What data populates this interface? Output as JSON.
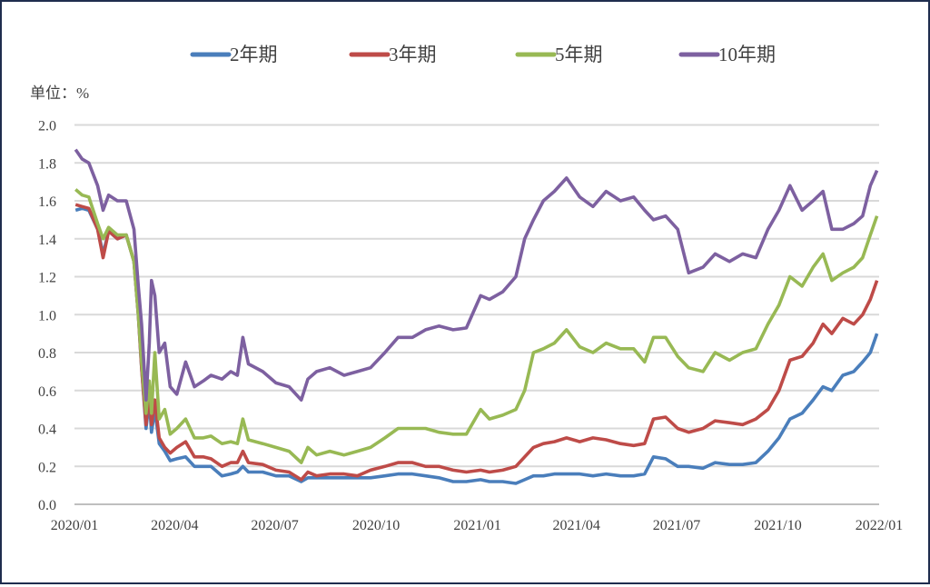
{
  "chart_data": {
    "type": "line",
    "unit_label": "单位：%",
    "ylim": [
      0,
      2.0
    ],
    "yticks": [
      "0.0",
      "0.2",
      "0.4",
      "0.6",
      "0.8",
      "1.0",
      "1.2",
      "1.4",
      "1.6",
      "1.8",
      "2.0"
    ],
    "xlim": [
      "2020-01-01",
      "2022-01-01"
    ],
    "xticks": [
      {
        "date": "2020-01-01",
        "label": "2020/01"
      },
      {
        "date": "2020-04-01",
        "label": "2020/04"
      },
      {
        "date": "2020-07-01",
        "label": "2020/07"
      },
      {
        "date": "2020-10-01",
        "label": "2020/10"
      },
      {
        "date": "2021-01-01",
        "label": "2021/01"
      },
      {
        "date": "2021-04-01",
        "label": "2021/04"
      },
      {
        "date": "2021-07-01",
        "label": "2021/07"
      },
      {
        "date": "2021-10-01",
        "label": "2021/10"
      },
      {
        "date": "2022-01-01",
        "label": "2022/01"
      }
    ],
    "grid": true,
    "legend_position": "top",
    "x": [
      "2020-01-02",
      "2020-01-08",
      "2020-01-14",
      "2020-01-22",
      "2020-01-27",
      "2020-02-01",
      "2020-02-09",
      "2020-02-17",
      "2020-02-24",
      "2020-02-28",
      "2020-03-02",
      "2020-03-06",
      "2020-03-09",
      "2020-03-11",
      "2020-03-14",
      "2020-03-18",
      "2020-03-23",
      "2020-03-28",
      "2020-04-03",
      "2020-04-11",
      "2020-04-19",
      "2020-04-27",
      "2020-05-04",
      "2020-05-14",
      "2020-05-22",
      "2020-05-28",
      "2020-06-02",
      "2020-06-07",
      "2020-06-20",
      "2020-07-02",
      "2020-07-14",
      "2020-07-25",
      "2020-07-31",
      "2020-08-08",
      "2020-08-20",
      "2020-09-02",
      "2020-09-14",
      "2020-09-26",
      "2020-10-09",
      "2020-10-21",
      "2020-11-03",
      "2020-11-15",
      "2020-11-27",
      "2020-12-10",
      "2020-12-22",
      "2021-01-04",
      "2021-01-12",
      "2021-01-24",
      "2021-02-05",
      "2021-02-13",
      "2021-02-21",
      "2021-03-02",
      "2021-03-12",
      "2021-03-23",
      "2021-04-04",
      "2021-04-16",
      "2021-04-28",
      "2021-05-11",
      "2021-05-23",
      "2021-06-02",
      "2021-06-10",
      "2021-06-21",
      "2021-07-02",
      "2021-07-12",
      "2021-07-25",
      "2021-08-05",
      "2021-08-18",
      "2021-08-30",
      "2021-09-11",
      "2021-09-22",
      "2021-10-02",
      "2021-10-12",
      "2021-10-23",
      "2021-11-02",
      "2021-11-11",
      "2021-11-19",
      "2021-11-29",
      "2021-12-09",
      "2021-12-17",
      "2021-12-24",
      "2021-12-30"
    ],
    "series": [
      {
        "name": "2年期",
        "color": "#4a7ebb",
        "values": [
          1.55,
          1.56,
          1.55,
          1.45,
          1.32,
          1.44,
          1.4,
          1.42,
          1.28,
          1.0,
          0.72,
          0.4,
          0.55,
          0.38,
          0.5,
          0.32,
          0.28,
          0.23,
          0.24,
          0.25,
          0.2,
          0.2,
          0.2,
          0.15,
          0.16,
          0.17,
          0.2,
          0.17,
          0.17,
          0.15,
          0.15,
          0.12,
          0.14,
          0.14,
          0.14,
          0.14,
          0.14,
          0.14,
          0.15,
          0.16,
          0.16,
          0.15,
          0.14,
          0.12,
          0.12,
          0.13,
          0.12,
          0.12,
          0.11,
          0.13,
          0.15,
          0.15,
          0.16,
          0.16,
          0.16,
          0.15,
          0.16,
          0.15,
          0.15,
          0.16,
          0.25,
          0.24,
          0.2,
          0.2,
          0.19,
          0.22,
          0.21,
          0.21,
          0.22,
          0.28,
          0.35,
          0.45,
          0.48,
          0.55,
          0.62,
          0.6,
          0.68,
          0.7,
          0.75,
          0.8,
          0.9
        ]
      },
      {
        "name": "3年期",
        "color": "#be4b48",
        "values": [
          1.58,
          1.57,
          1.56,
          1.45,
          1.3,
          1.44,
          1.4,
          1.42,
          1.28,
          1.0,
          0.72,
          0.42,
          0.6,
          0.42,
          0.55,
          0.35,
          0.3,
          0.27,
          0.3,
          0.33,
          0.25,
          0.25,
          0.24,
          0.2,
          0.22,
          0.22,
          0.28,
          0.22,
          0.21,
          0.18,
          0.17,
          0.13,
          0.17,
          0.15,
          0.16,
          0.16,
          0.15,
          0.18,
          0.2,
          0.22,
          0.22,
          0.2,
          0.2,
          0.18,
          0.17,
          0.18,
          0.17,
          0.18,
          0.2,
          0.25,
          0.3,
          0.32,
          0.33,
          0.35,
          0.33,
          0.35,
          0.34,
          0.32,
          0.31,
          0.32,
          0.45,
          0.46,
          0.4,
          0.38,
          0.4,
          0.44,
          0.43,
          0.42,
          0.45,
          0.5,
          0.6,
          0.76,
          0.78,
          0.85,
          0.95,
          0.9,
          0.98,
          0.95,
          1.0,
          1.08,
          1.18
        ]
      },
      {
        "name": "5年期",
        "color": "#98b954",
        "values": [
          1.66,
          1.63,
          1.62,
          1.48,
          1.4,
          1.46,
          1.42,
          1.42,
          1.28,
          1.0,
          0.75,
          0.48,
          0.65,
          0.48,
          0.8,
          0.45,
          0.5,
          0.37,
          0.4,
          0.45,
          0.35,
          0.35,
          0.36,
          0.32,
          0.33,
          0.32,
          0.45,
          0.34,
          0.32,
          0.3,
          0.28,
          0.22,
          0.3,
          0.26,
          0.28,
          0.26,
          0.28,
          0.3,
          0.35,
          0.4,
          0.4,
          0.4,
          0.38,
          0.37,
          0.37,
          0.5,
          0.45,
          0.47,
          0.5,
          0.6,
          0.8,
          0.82,
          0.85,
          0.92,
          0.83,
          0.8,
          0.85,
          0.82,
          0.82,
          0.75,
          0.88,
          0.88,
          0.78,
          0.72,
          0.7,
          0.8,
          0.76,
          0.8,
          0.82,
          0.95,
          1.05,
          1.2,
          1.15,
          1.25,
          1.32,
          1.18,
          1.22,
          1.25,
          1.3,
          1.42,
          1.52
        ]
      },
      {
        "name": "10年期",
        "color": "#7d60a0",
        "values": [
          1.87,
          1.82,
          1.8,
          1.68,
          1.55,
          1.63,
          1.6,
          1.6,
          1.45,
          1.15,
          0.95,
          0.55,
          0.85,
          1.18,
          1.1,
          0.8,
          0.85,
          0.62,
          0.58,
          0.75,
          0.62,
          0.65,
          0.68,
          0.66,
          0.7,
          0.68,
          0.88,
          0.74,
          0.7,
          0.64,
          0.62,
          0.55,
          0.66,
          0.7,
          0.72,
          0.68,
          0.7,
          0.72,
          0.8,
          0.88,
          0.88,
          0.92,
          0.94,
          0.92,
          0.93,
          1.1,
          1.08,
          1.12,
          1.2,
          1.4,
          1.5,
          1.6,
          1.65,
          1.72,
          1.62,
          1.57,
          1.65,
          1.6,
          1.62,
          1.55,
          1.5,
          1.52,
          1.45,
          1.22,
          1.25,
          1.32,
          1.28,
          1.32,
          1.3,
          1.45,
          1.55,
          1.68,
          1.55,
          1.6,
          1.65,
          1.45,
          1.45,
          1.48,
          1.52,
          1.68,
          1.76
        ]
      }
    ]
  }
}
